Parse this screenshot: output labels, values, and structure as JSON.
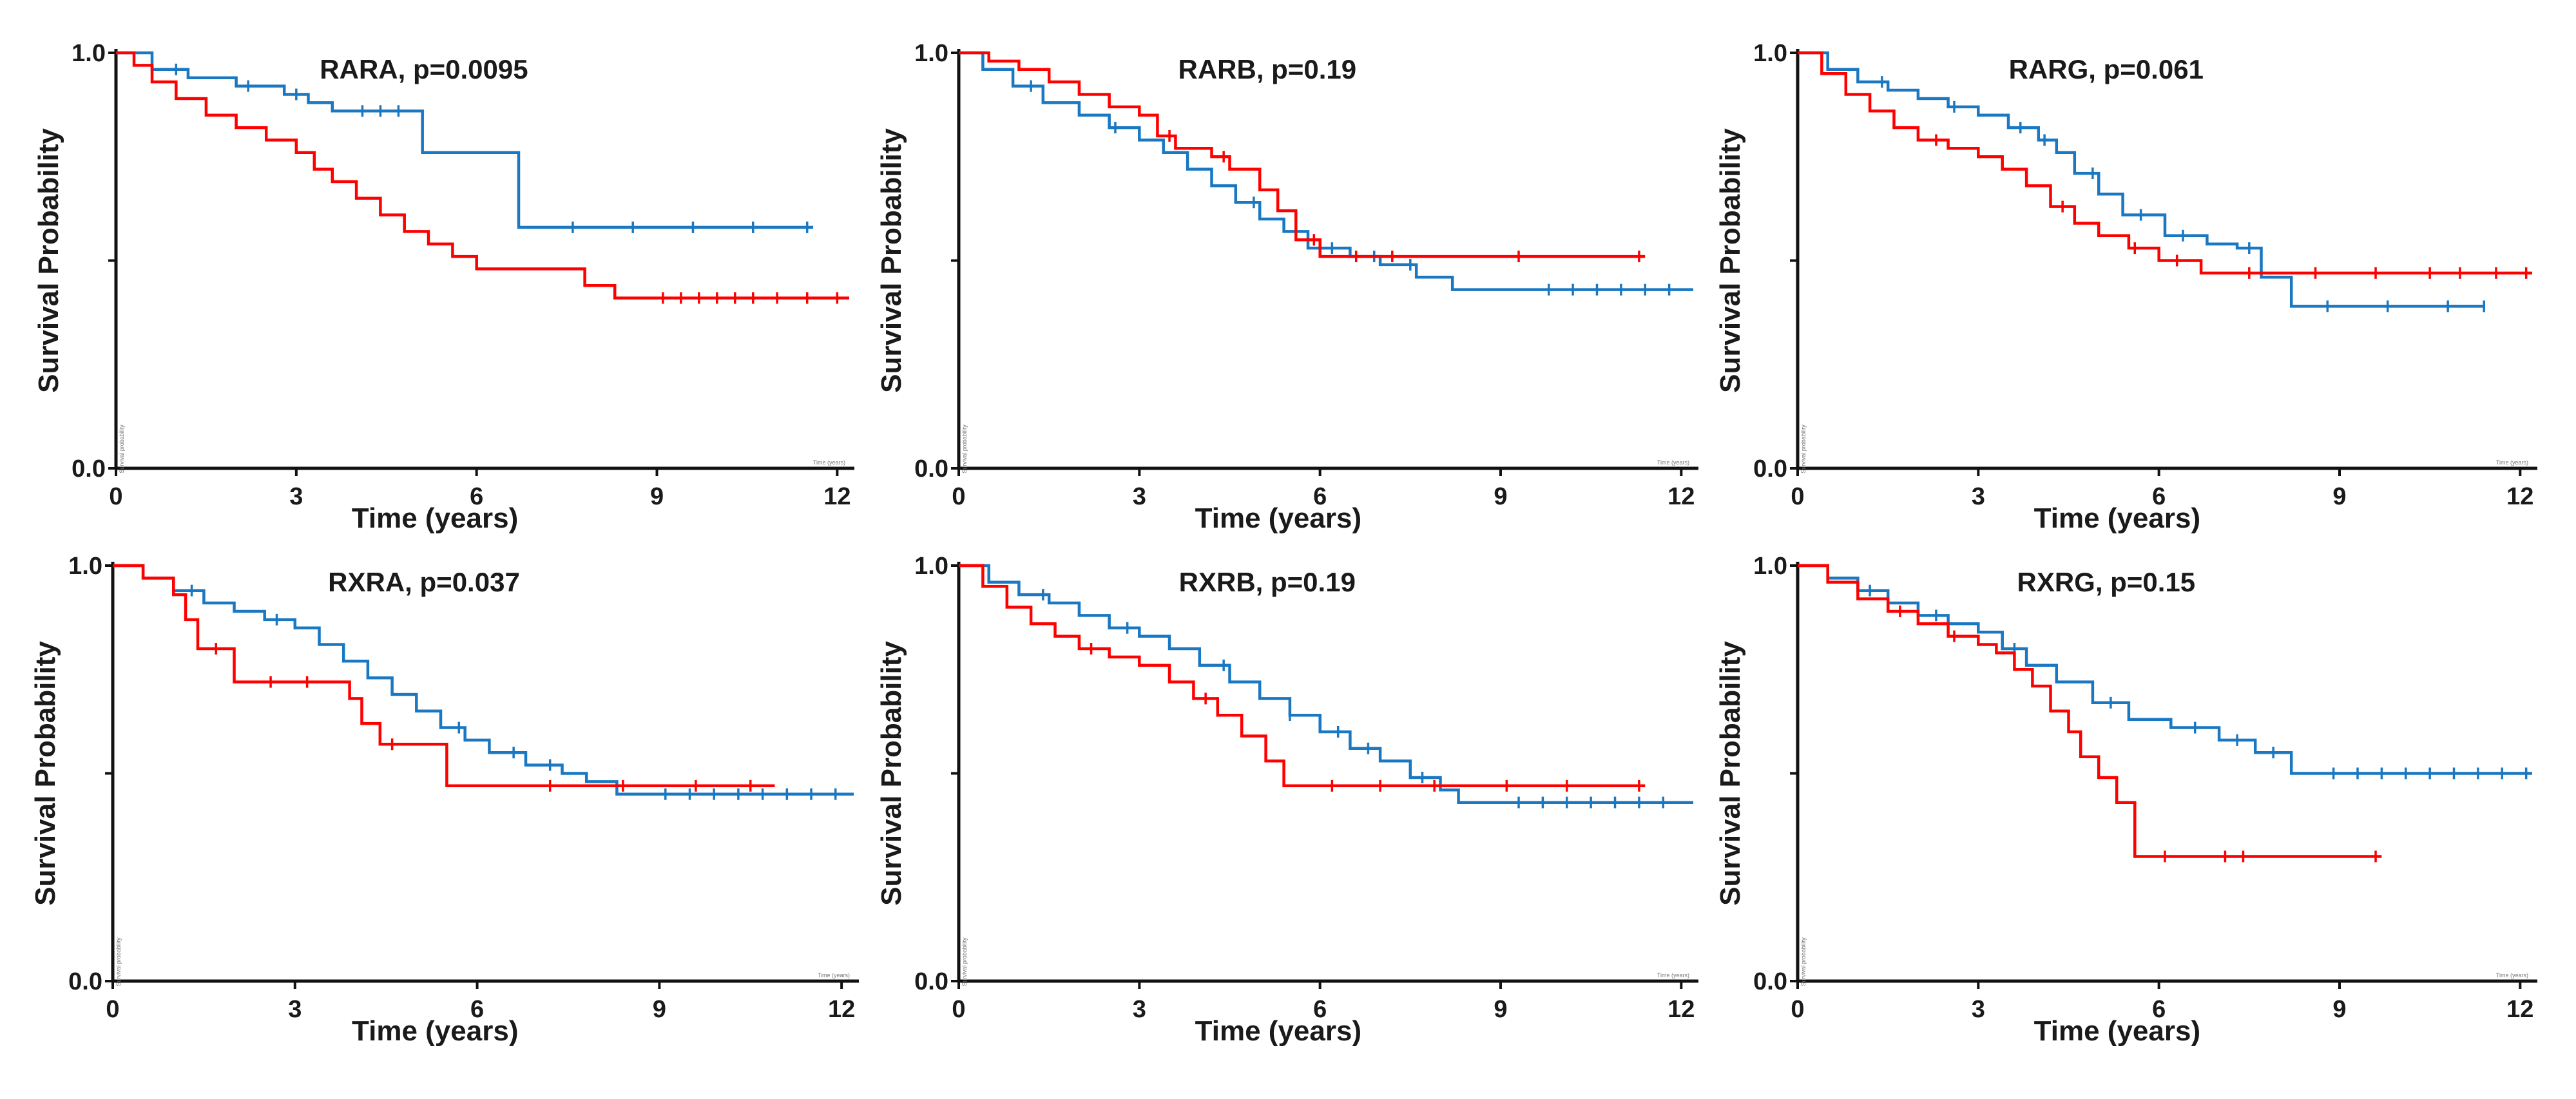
{
  "colors": {
    "high": "#ff0000",
    "low": "#1a78c2",
    "axis": "#111111"
  },
  "chart_data": [
    {
      "type": "line",
      "subtype": "kaplan-meier",
      "title": "RARA, p=0.0095",
      "xlabel": "Time (years)",
      "ylabel": "Survival Probability",
      "inner_xlabel": "Time (years)",
      "inner_ylabel": "Survival probability",
      "xlim": [
        0,
        12.2
      ],
      "ylim": [
        0,
        1
      ],
      "xticks": [
        0,
        3,
        6,
        9,
        12
      ],
      "yticks": [
        0.0,
        0.5,
        1.0
      ],
      "ytick_labels": [
        "0.0",
        "",
        "1.0"
      ],
      "series": [
        {
          "name": "red",
          "color": "#ff0000",
          "x": [
            0,
            0.3,
            0.6,
            1.0,
            1.5,
            2.0,
            2.5,
            3.0,
            3.3,
            3.6,
            4.0,
            4.4,
            4.8,
            5.2,
            5.6,
            6.0,
            6.4,
            7.0,
            7.5,
            7.8,
            8.3,
            12.2
          ],
          "y": [
            1.0,
            0.97,
            0.93,
            0.89,
            0.85,
            0.82,
            0.79,
            0.76,
            0.72,
            0.69,
            0.65,
            0.61,
            0.57,
            0.54,
            0.51,
            0.48,
            0.48,
            0.48,
            0.48,
            0.44,
            0.41,
            0.41
          ],
          "censor_x": [
            9.1,
            9.4,
            9.7,
            10.0,
            10.3,
            10.6,
            11.0,
            11.5,
            12.0
          ]
        },
        {
          "name": "blue",
          "color": "#1a78c2",
          "x": [
            0,
            0.6,
            1.2,
            2.0,
            2.8,
            3.2,
            3.6,
            5.1,
            6.7,
            6.9,
            11.6
          ],
          "y": [
            1.0,
            0.96,
            0.94,
            0.92,
            0.9,
            0.88,
            0.86,
            0.76,
            0.58,
            0.58,
            0.58
          ],
          "censor_x": [
            1.0,
            2.2,
            3.0,
            4.1,
            4.4,
            4.7,
            7.6,
            8.6,
            9.6,
            10.6,
            11.5
          ]
        }
      ]
    },
    {
      "type": "line",
      "subtype": "kaplan-meier",
      "title": "RARB, p=0.19",
      "xlabel": "Time (years)",
      "ylabel": "Survival Probability",
      "inner_xlabel": "Time (years)",
      "inner_ylabel": "Survival probability",
      "xlim": [
        0,
        12.2
      ],
      "ylim": [
        0,
        1
      ],
      "xticks": [
        0,
        3,
        6,
        9,
        12
      ],
      "yticks": [
        0.0,
        0.5,
        1.0
      ],
      "ytick_labels": [
        "0.0",
        "",
        "1.0"
      ],
      "series": [
        {
          "name": "red",
          "color": "#ff0000",
          "x": [
            0,
            0.5,
            1.0,
            1.5,
            2.0,
            2.5,
            3.0,
            3.3,
            3.6,
            4.2,
            4.5,
            5.0,
            5.3,
            5.6,
            6.0,
            11.4
          ],
          "y": [
            1.0,
            0.98,
            0.96,
            0.93,
            0.9,
            0.87,
            0.85,
            0.8,
            0.77,
            0.75,
            0.72,
            0.67,
            0.62,
            0.55,
            0.51,
            0.51
          ],
          "censor_x": [
            3.5,
            4.4,
            5.9,
            6.6,
            7.2,
            9.3,
            11.3
          ]
        },
        {
          "name": "blue",
          "color": "#1a78c2",
          "x": [
            0,
            0.4,
            0.9,
            1.4,
            2.0,
            2.5,
            3.0,
            3.4,
            3.8,
            4.2,
            4.6,
            5.0,
            5.4,
            5.8,
            6.5,
            7.0,
            7.6,
            8.2,
            12.2
          ],
          "y": [
            1.0,
            0.96,
            0.92,
            0.88,
            0.85,
            0.82,
            0.79,
            0.76,
            0.72,
            0.68,
            0.64,
            0.6,
            0.57,
            0.53,
            0.51,
            0.49,
            0.46,
            0.43,
            0.43
          ],
          "censor_x": [
            1.2,
            2.6,
            4.9,
            6.2,
            6.9,
            7.5,
            9.8,
            10.2,
            10.6,
            11.0,
            11.4,
            11.8
          ]
        }
      ]
    },
    {
      "type": "line",
      "subtype": "kaplan-meier",
      "title": "RARG, p=0.061",
      "xlabel": "Time (years)",
      "ylabel": "Survival Probability",
      "inner_xlabel": "Time (years)",
      "inner_ylabel": "Survival probability",
      "xlim": [
        0,
        12.2
      ],
      "ylim": [
        0,
        1
      ],
      "xticks": [
        0,
        3,
        6,
        9,
        12
      ],
      "yticks": [
        0.0,
        0.5,
        1.0
      ],
      "ytick_labels": [
        "0.0",
        "",
        "1.0"
      ],
      "series": [
        {
          "name": "red",
          "color": "#ff0000",
          "x": [
            0,
            0.4,
            0.8,
            1.2,
            1.6,
            2.0,
            2.5,
            3.0,
            3.4,
            3.8,
            4.2,
            4.6,
            5.0,
            5.5,
            6.0,
            6.7,
            12.2
          ],
          "y": [
            1.0,
            0.95,
            0.9,
            0.86,
            0.82,
            0.79,
            0.77,
            0.75,
            0.72,
            0.68,
            0.63,
            0.59,
            0.56,
            0.53,
            0.5,
            0.47,
            0.47
          ],
          "censor_x": [
            2.3,
            4.4,
            5.6,
            6.3,
            7.5,
            8.6,
            9.6,
            10.5,
            11.0,
            11.6,
            12.1
          ]
        },
        {
          "name": "blue",
          "color": "#1a78c2",
          "x": [
            0,
            0.5,
            1.0,
            1.5,
            2.0,
            2.5,
            3.0,
            3.5,
            4.0,
            4.3,
            4.6,
            5.0,
            5.4,
            6.1,
            6.8,
            7.3,
            7.7,
            8.2,
            11.4
          ],
          "y": [
            1.0,
            0.96,
            0.93,
            0.91,
            0.89,
            0.87,
            0.85,
            0.82,
            0.79,
            0.76,
            0.71,
            0.66,
            0.61,
            0.56,
            0.54,
            0.53,
            0.46,
            0.39,
            0.39
          ],
          "censor_x": [
            1.4,
            2.6,
            3.7,
            4.1,
            4.9,
            5.7,
            6.4,
            7.5,
            8.8,
            9.8,
            10.8,
            11.4
          ]
        }
      ]
    },
    {
      "type": "line",
      "subtype": "kaplan-meier",
      "title": "RXRA, p=0.037",
      "xlabel": "Time (years)",
      "ylabel": "Survival Probability",
      "inner_xlabel": "Time (years)",
      "inner_ylabel": "Survival probability",
      "xlim": [
        0,
        12.2
      ],
      "ylim": [
        0,
        1
      ],
      "xticks": [
        0,
        3,
        6,
        9,
        12
      ],
      "yticks": [
        0.0,
        0.5,
        1.0
      ],
      "ytick_labels": [
        "0.0",
        "",
        "1.0"
      ],
      "series": [
        {
          "name": "red",
          "color": "#ff0000",
          "x": [
            0,
            0.5,
            1.0,
            1.2,
            1.4,
            2.0,
            3.7,
            3.9,
            4.1,
            4.4,
            5.3,
            5.5,
            10.9
          ],
          "y": [
            1.0,
            0.97,
            0.93,
            0.87,
            0.8,
            0.72,
            0.72,
            0.68,
            0.62,
            0.57,
            0.57,
            0.47,
            0.47
          ],
          "censor_x": [
            1.7,
            2.6,
            3.2,
            4.6,
            7.2,
            8.4,
            9.6,
            10.5
          ]
        },
        {
          "name": "blue",
          "color": "#1a78c2",
          "x": [
            0,
            0.5,
            1.0,
            1.5,
            2.0,
            2.5,
            3.0,
            3.4,
            3.8,
            4.2,
            4.6,
            5.0,
            5.4,
            5.8,
            6.2,
            6.8,
            7.4,
            7.8,
            8.3,
            12.2
          ],
          "y": [
            1.0,
            0.97,
            0.94,
            0.91,
            0.89,
            0.87,
            0.85,
            0.81,
            0.77,
            0.73,
            0.69,
            0.65,
            0.61,
            0.58,
            0.55,
            0.52,
            0.5,
            0.48,
            0.45,
            0.45
          ],
          "censor_x": [
            1.3,
            2.7,
            5.7,
            6.6,
            7.2,
            9.1,
            9.5,
            9.9,
            10.3,
            10.7,
            11.1,
            11.5,
            11.9
          ]
        }
      ]
    },
    {
      "type": "line",
      "subtype": "kaplan-meier",
      "title": "RXRB, p=0.19",
      "xlabel": "Time (years)",
      "ylabel": "Survival Probability",
      "inner_xlabel": "Time (years)",
      "inner_ylabel": "Survival probability",
      "xlim": [
        0,
        12.2
      ],
      "ylim": [
        0,
        1
      ],
      "xticks": [
        0,
        3,
        6,
        9,
        12
      ],
      "yticks": [
        0.0,
        0.5,
        1.0
      ],
      "ytick_labels": [
        "0.0",
        "",
        "1.0"
      ],
      "series": [
        {
          "name": "red",
          "color": "#ff0000",
          "x": [
            0,
            0.4,
            0.8,
            1.2,
            1.6,
            2.0,
            2.5,
            3.0,
            3.5,
            3.9,
            4.3,
            4.7,
            5.1,
            5.4,
            11.4
          ],
          "y": [
            1.0,
            0.95,
            0.9,
            0.86,
            0.83,
            0.8,
            0.78,
            0.76,
            0.72,
            0.68,
            0.64,
            0.59,
            0.53,
            0.47,
            0.47
          ],
          "censor_x": [
            2.2,
            4.1,
            6.2,
            7.0,
            7.9,
            9.1,
            10.1,
            11.3
          ]
        },
        {
          "name": "blue",
          "color": "#1a78c2",
          "x": [
            0,
            0.5,
            1.0,
            1.5,
            2.0,
            2.5,
            3.0,
            3.5,
            4.0,
            4.5,
            5.0,
            5.5,
            6.0,
            6.5,
            7.0,
            7.5,
            8.0,
            8.3,
            12.2
          ],
          "y": [
            1.0,
            0.96,
            0.93,
            0.91,
            0.88,
            0.85,
            0.83,
            0.8,
            0.76,
            0.72,
            0.68,
            0.64,
            0.6,
            0.56,
            0.53,
            0.49,
            0.46,
            0.43,
            0.43
          ],
          "censor_x": [
            1.4,
            2.8,
            4.4,
            5.5,
            6.3,
            6.8,
            7.7,
            9.3,
            9.7,
            10.1,
            10.5,
            10.9,
            11.3,
            11.7
          ]
        }
      ]
    },
    {
      "type": "line",
      "subtype": "kaplan-meier",
      "title": "RXRG, p=0.15",
      "xlabel": "Time (years)",
      "ylabel": "Survival Probability",
      "inner_xlabel": "Time (years)",
      "inner_ylabel": "Survival probability",
      "xlim": [
        0,
        12.2
      ],
      "ylim": [
        0,
        1
      ],
      "xticks": [
        0,
        3,
        6,
        9,
        12
      ],
      "yticks": [
        0.0,
        0.5,
        1.0
      ],
      "ytick_labels": [
        "0.0",
        "",
        "1.0"
      ],
      "series": [
        {
          "name": "red",
          "color": "#ff0000",
          "x": [
            0,
            0.5,
            1.0,
            1.5,
            2.0,
            2.5,
            3.0,
            3.3,
            3.6,
            3.9,
            4.2,
            4.5,
            4.7,
            5.0,
            5.3,
            5.6,
            9.7
          ],
          "y": [
            1.0,
            0.96,
            0.92,
            0.89,
            0.86,
            0.83,
            0.81,
            0.79,
            0.75,
            0.71,
            0.65,
            0.6,
            0.54,
            0.49,
            0.43,
            0.3,
            0.3
          ],
          "censor_x": [
            1.7,
            2.6,
            6.1,
            7.1,
            7.4,
            9.6
          ]
        },
        {
          "name": "blue",
          "color": "#1a78c2",
          "x": [
            0,
            0.5,
            1.0,
            1.5,
            2.0,
            2.5,
            3.0,
            3.4,
            3.8,
            4.3,
            4.9,
            5.5,
            6.2,
            7.0,
            7.6,
            8.2,
            12.2
          ],
          "y": [
            1.0,
            0.97,
            0.94,
            0.91,
            0.88,
            0.86,
            0.84,
            0.8,
            0.76,
            0.72,
            0.67,
            0.63,
            0.61,
            0.58,
            0.55,
            0.5,
            0.5
          ],
          "censor_x": [
            1.2,
            2.3,
            3.6,
            5.2,
            6.6,
            7.3,
            7.9,
            8.9,
            9.3,
            9.7,
            10.1,
            10.5,
            10.9,
            11.3,
            11.7,
            12.1
          ]
        }
      ]
    }
  ]
}
